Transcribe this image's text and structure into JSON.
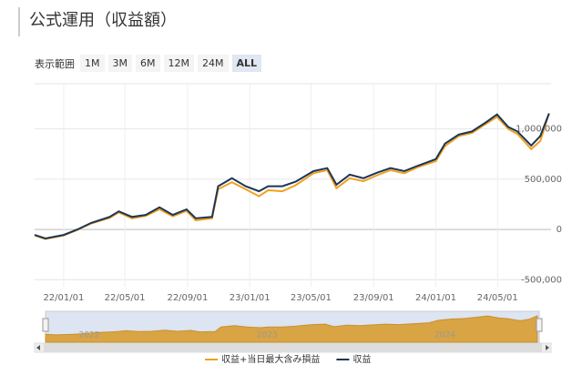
{
  "chart_data": {
    "type": "line",
    "title": "公式運用（収益額）",
    "range_label": "表示範囲",
    "range_buttons": [
      "1M",
      "3M",
      "6M",
      "12M",
      "24M",
      "ALL"
    ],
    "selected_range": "ALL",
    "x": [
      "21/11/05",
      "21/11/26",
      "22/01/01",
      "22/01/28",
      "22/02/24",
      "22/04/01",
      "22/04/19",
      "22/05/15",
      "22/06/11",
      "22/07/08",
      "22/08/03",
      "22/08/30",
      "22/09/17",
      "22/10/19",
      "22/10/31",
      "22/11/27",
      "22/12/24",
      "23/01/19",
      "23/02/06",
      "23/03/06",
      "23/04/01",
      "23/05/06",
      "23/06/02",
      "23/06/20",
      "23/07/16",
      "23/08/12",
      "23/09/08",
      "23/10/04",
      "23/10/31",
      "23/11/27",
      "24/01/01",
      "24/01/19",
      "24/02/15",
      "24/03/12",
      "24/04/08",
      "24/04/30",
      "24/05/22",
      "24/06/09",
      "24/07/06",
      "24/07/24",
      "24/08/10"
    ],
    "series": [
      {
        "name": "収益+当日最大含み損益",
        "color": "#f0a020",
        "values": [
          -60000,
          -95000,
          -60000,
          -5000,
          60000,
          115000,
          170000,
          110000,
          135000,
          200000,
          130000,
          185000,
          90000,
          110000,
          400000,
          470000,
          400000,
          330000,
          390000,
          380000,
          440000,
          560000,
          590000,
          410000,
          510000,
          480000,
          540000,
          590000,
          560000,
          620000,
          680000,
          830000,
          930000,
          960000,
          1050000,
          1120000,
          1000000,
          950000,
          800000,
          880000,
          1155000
        ]
      },
      {
        "name": "収益",
        "color": "#1b3656",
        "values": [
          -55000,
          -90000,
          -55000,
          0,
          65000,
          125000,
          180000,
          125000,
          145000,
          220000,
          145000,
          200000,
          110000,
          125000,
          430000,
          510000,
          430000,
          380000,
          430000,
          430000,
          475000,
          580000,
          610000,
          445000,
          545000,
          510000,
          565000,
          610000,
          580000,
          635000,
          700000,
          855000,
          945000,
          975000,
          1065000,
          1145000,
          1020000,
          975000,
          835000,
          930000,
          1155000
        ]
      }
    ],
    "xlim": [
      "21/11/05",
      "24/08/14"
    ],
    "xticks": [
      "22/01/01",
      "22/05/01",
      "22/09/01",
      "23/01/01",
      "23/05/01",
      "23/09/01",
      "24/01/01",
      "24/05/01"
    ],
    "ylim": [
      -570000,
      1450000
    ],
    "yticks": [
      {
        "value": -500000,
        "label": "-500,000"
      },
      0,
      {
        "value": 500000,
        "label": "500,000"
      },
      {
        "value": 1000000,
        "label": "1,000,000"
      }
    ],
    "grid": true,
    "navigator_ticks": [
      {
        "value": "22/01/01",
        "label": "2022"
      },
      {
        "value": "23/01/01",
        "label": "2023"
      },
      {
        "value": "24/01/01",
        "label": "2024"
      }
    ],
    "legend": "bottom"
  }
}
